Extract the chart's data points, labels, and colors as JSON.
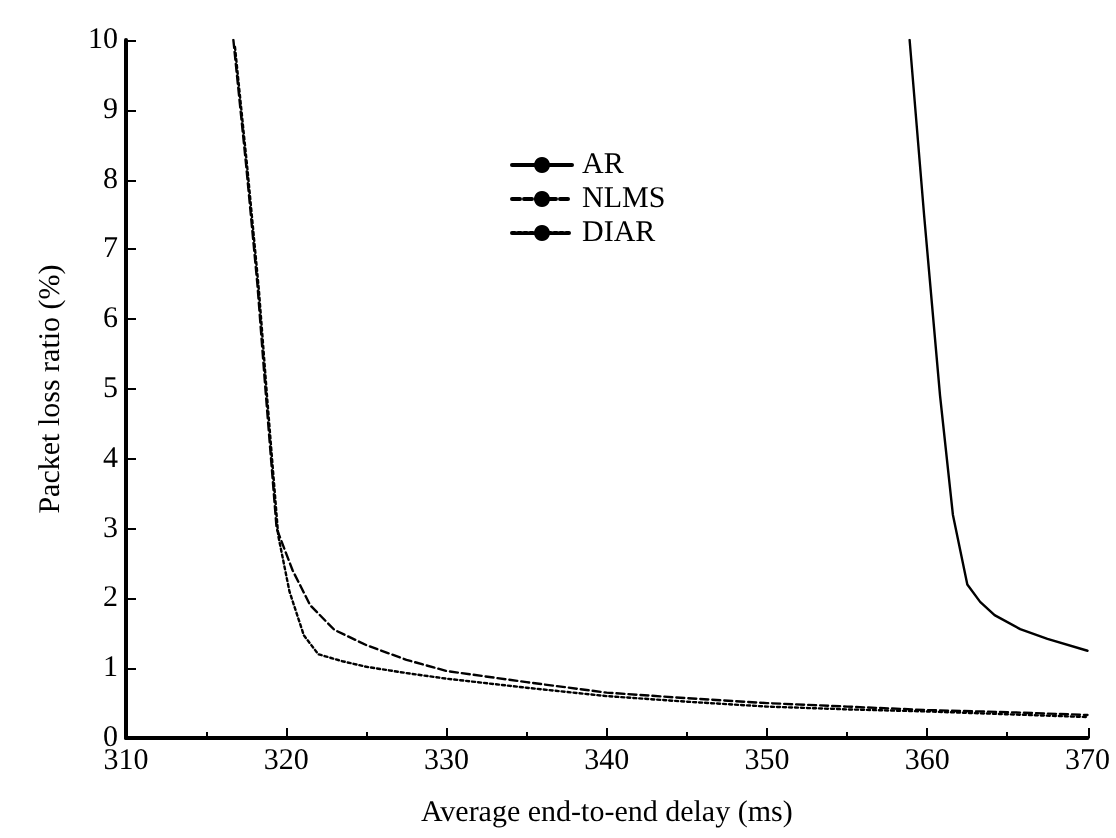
{
  "chart_data": {
    "type": "line",
    "xlabel": "Average end-to-end delay (ms)",
    "ylabel": "Packet loss ratio (%)",
    "xlim": [
      310,
      370
    ],
    "xticks": [
      310,
      320,
      330,
      340,
      350,
      360,
      370
    ],
    "ylim": [
      0,
      10
    ],
    "yticks": [
      0,
      1,
      2,
      3,
      4,
      5,
      6,
      7,
      8,
      9,
      10
    ],
    "grid": false,
    "legend": "top",
    "marker": "none",
    "series": [
      {
        "name": "AR",
        "color": "#000000",
        "line_style": "solid",
        "x": [
          358.9,
          359.8,
          360.8,
          361.6,
          362.5,
          363.3,
          364.2,
          365.8,
          367.5,
          370
        ],
        "values": [
          10,
          7.5,
          4.9,
          3.2,
          2.2,
          1.95,
          1.76,
          1.56,
          1.42,
          1.25
        ]
      },
      {
        "name": "NLMS",
        "color": "#000000",
        "line_style": "dashed",
        "x": [
          316.7,
          317.5,
          318.2,
          318.7,
          319.4,
          320.4,
          321.5,
          323,
          325,
          327.5,
          330,
          335,
          340,
          345,
          350,
          355,
          360,
          365,
          370
        ],
        "values": [
          10,
          8.2,
          6.5,
          5,
          3,
          2.4,
          1.9,
          1.55,
          1.33,
          1.12,
          0.96,
          0.8,
          0.65,
          0.57,
          0.5,
          0.45,
          0.4,
          0.37,
          0.33
        ]
      },
      {
        "name": "DIAR",
        "color": "#000000",
        "line_style": "dotted",
        "x": [
          316.8,
          317.6,
          318.3,
          318.8,
          319.5,
          320.2,
          321.1,
          322,
          323.5,
          325,
          327.5,
          330,
          335,
          340,
          345,
          350,
          355,
          360,
          365,
          370
        ],
        "values": [
          9.9,
          8.1,
          6.4,
          4.9,
          2.9,
          2.1,
          1.47,
          1.2,
          1.1,
          1.02,
          0.93,
          0.85,
          0.72,
          0.6,
          0.52,
          0.45,
          0.41,
          0.38,
          0.34,
          0.3
        ]
      }
    ]
  }
}
